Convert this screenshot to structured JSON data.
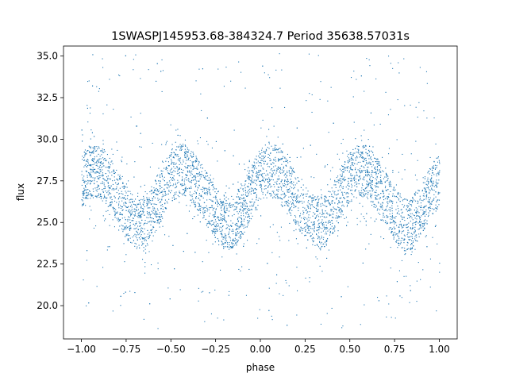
{
  "chart_data": {
    "type": "scatter",
    "title": "1SWASPJ145953.68-384324.7 Period 35638.57031s",
    "xlabel": "phase",
    "ylabel": "flux",
    "xlim": [
      -1.1,
      1.1
    ],
    "ylim": [
      18.0,
      35.6
    ],
    "x_ticks": [
      -1.0,
      -0.75,
      -0.5,
      -0.25,
      0.0,
      0.25,
      0.5,
      0.75,
      1.0
    ],
    "x_tick_labels": [
      "−1.00",
      "−0.75",
      "−0.50",
      "−0.25",
      "0.00",
      "0.25",
      "0.50",
      "0.75",
      "1.00"
    ],
    "y_ticks": [
      20.0,
      22.5,
      25.0,
      27.5,
      30.0,
      32.5,
      35.0
    ],
    "y_tick_labels": [
      "20.0",
      "22.5",
      "25.0",
      "27.5",
      "30.0",
      "32.5",
      "35.0"
    ],
    "grid": false,
    "point_color": "#1f77b4",
    "series": [
      {
        "phase_range": [
          -1.0,
          1.0
        ],
        "band_half_width": 1.6,
        "trend": {
          "x": [
            -1.0,
            -0.95,
            -0.9,
            -0.85,
            -0.8,
            -0.75,
            -0.7,
            -0.65,
            -0.6,
            -0.55,
            -0.5,
            -0.45,
            -0.4,
            -0.35,
            -0.3,
            -0.25,
            -0.2,
            -0.15,
            -0.1,
            -0.05,
            0.0,
            0.05,
            0.1,
            0.15,
            0.2,
            0.25,
            0.3,
            0.35,
            0.4,
            0.45,
            0.5,
            0.55,
            0.6,
            0.65,
            0.7,
            0.75,
            0.8,
            0.85,
            0.9,
            0.95,
            1.0
          ],
          "y": [
            27.6,
            28.1,
            28.1,
            27.5,
            26.6,
            25.6,
            25.0,
            25.0,
            25.8,
            26.8,
            27.8,
            28.2,
            28.0,
            27.3,
            26.4,
            25.6,
            25.0,
            25.0,
            25.8,
            26.9,
            28.0,
            28.3,
            28.0,
            27.3,
            26.4,
            25.6,
            25.0,
            25.0,
            25.8,
            26.8,
            27.8,
            28.2,
            28.0,
            27.3,
            26.4,
            25.5,
            24.9,
            25.0,
            25.8,
            26.9,
            27.6
          ]
        },
        "outlier_range": [
          18.6,
          35.3
        ]
      }
    ]
  }
}
